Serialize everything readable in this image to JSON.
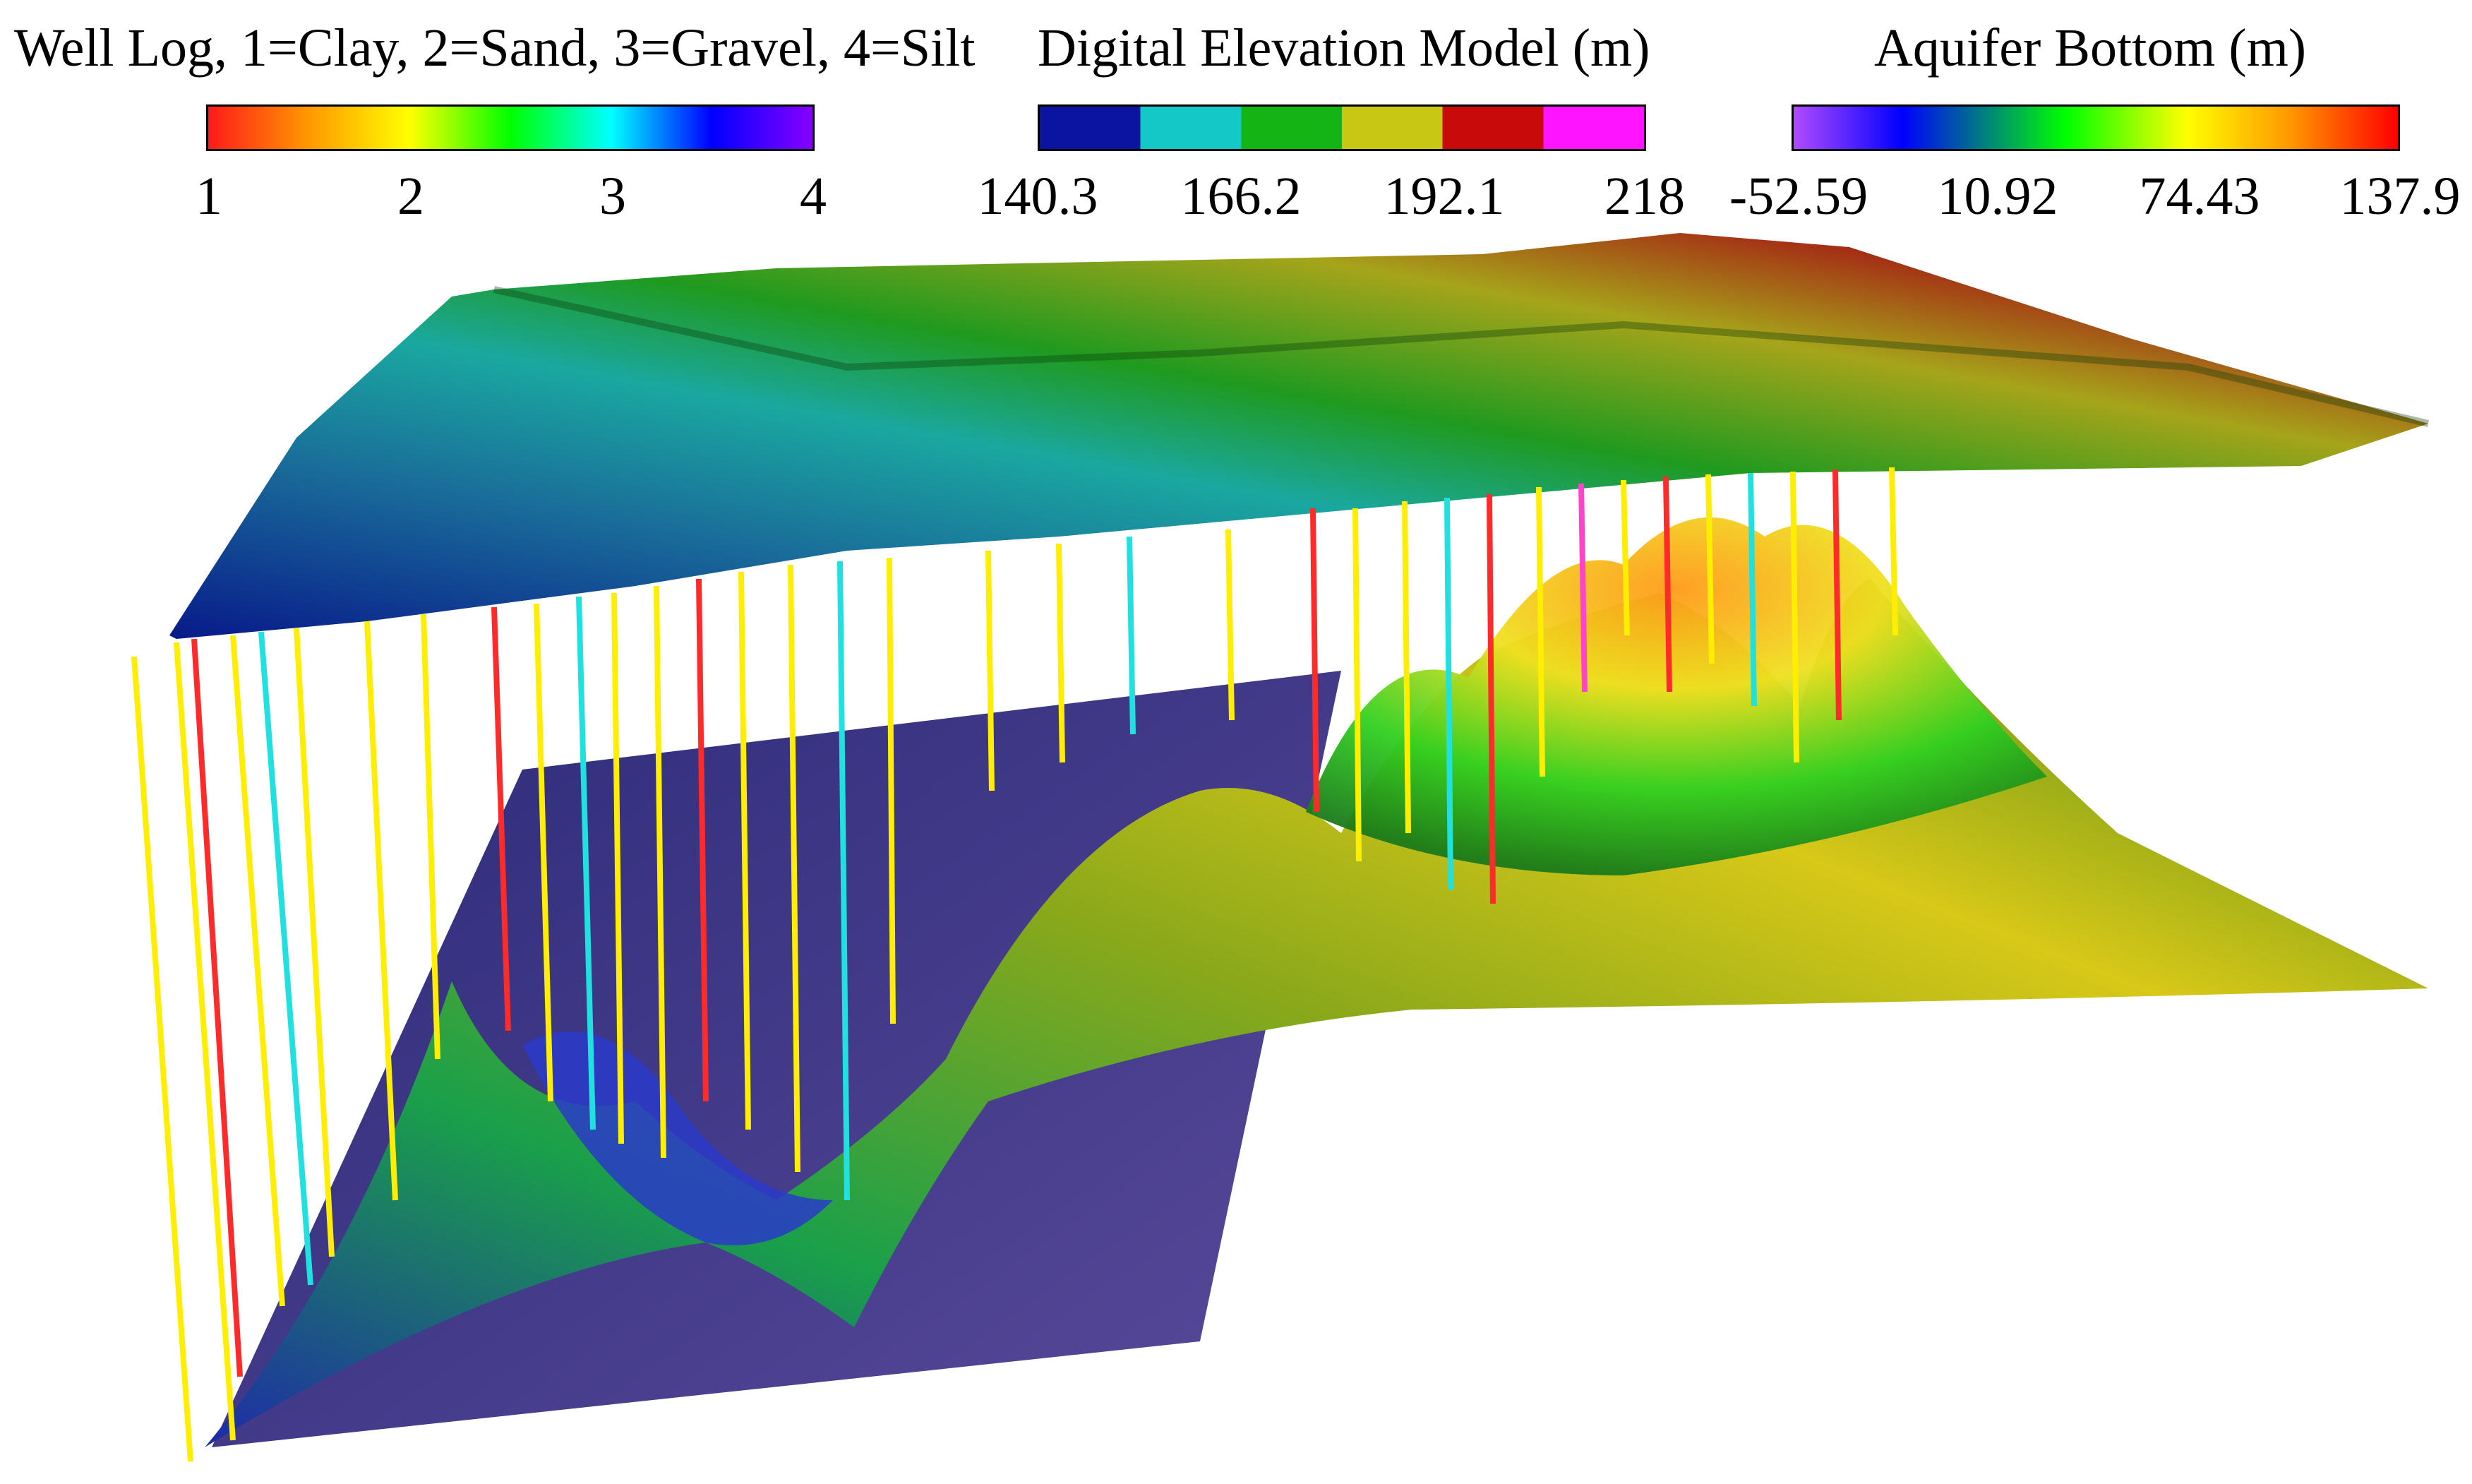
{
  "legends": [
    {
      "title": "Well Log, 1=Clay, 2=Sand, 3=Gravel, 4=Silt",
      "ticks": [
        "1",
        "2",
        "3",
        "4"
      ],
      "colors": [
        "#ff1a1a",
        "#ff9900",
        "#ffff00",
        "#00ff00",
        "#00ffff",
        "#0000ff",
        "#8800ff"
      ]
    },
    {
      "title": "Digital Elevation Model (m)",
      "ticks": [
        "140.3",
        "166.2",
        "192.1",
        "218"
      ],
      "colors": [
        "#0a14a0",
        "#14c8c8",
        "#14b414",
        "#c8c814",
        "#c80a0a",
        "#ff14ff"
      ]
    },
    {
      "title": "Aquifer Bottom (m)",
      "ticks": [
        "-52.59",
        "10.92",
        "74.43",
        "137.9"
      ],
      "colors": [
        "#b04bff",
        "#0000ff",
        "#00ff00",
        "#ffff00",
        "#ff9900",
        "#ff0000"
      ]
    }
  ]
}
